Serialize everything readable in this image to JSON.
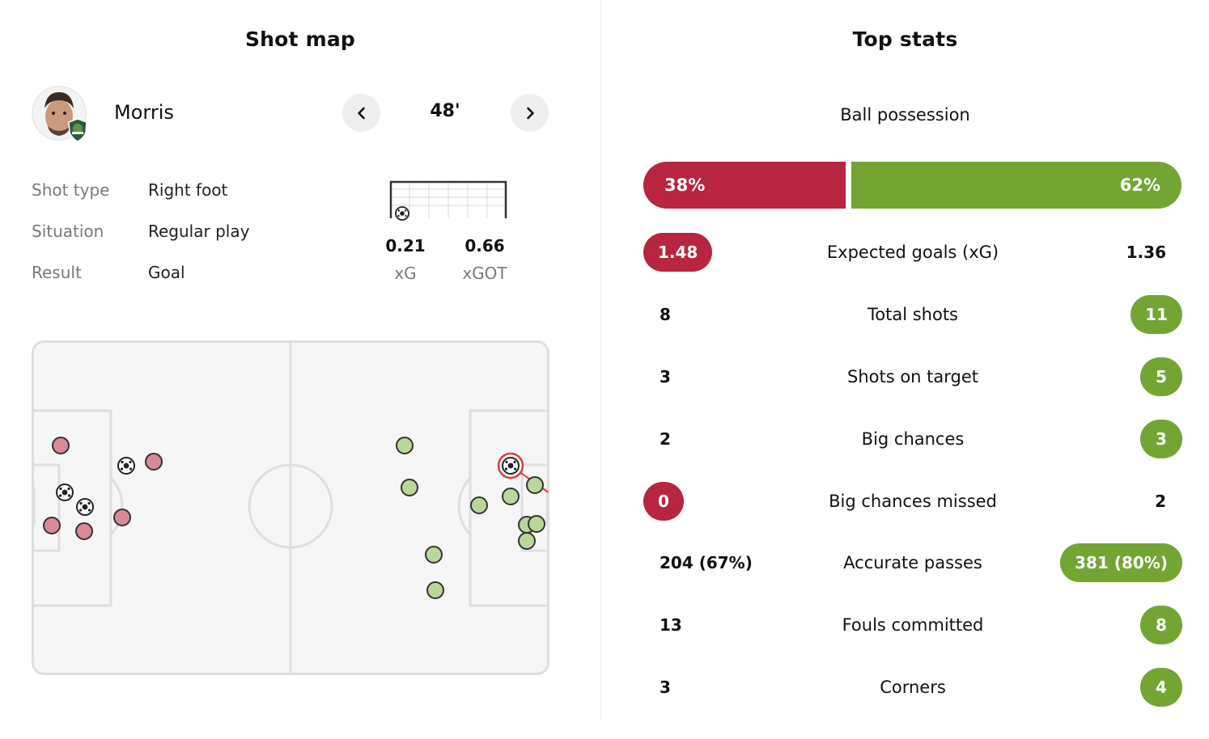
{
  "shot_map": {
    "title": "Shot map",
    "player_name": "Morris",
    "minute": "48'",
    "details": [
      {
        "label": "Shot type",
        "value": "Right foot"
      },
      {
        "label": "Situation",
        "value": "Regular play"
      },
      {
        "label": "Result",
        "value": "Goal"
      }
    ],
    "xg": {
      "value": "0.21",
      "label": "xG"
    },
    "xgot": {
      "value": "0.66",
      "label": "xGOT"
    },
    "colors": {
      "home": "#d98a96",
      "away": "#b9d79a",
      "selected": "#e03a3a"
    }
  },
  "top_stats": {
    "title": "Top stats",
    "possession": {
      "label": "Ball possession",
      "home": "38%",
      "away": "62%",
      "home_fraction": 0.38
    },
    "rows": [
      {
        "label": "Expected goals (xG)",
        "home": "1.48",
        "away": "1.36",
        "leader": "home"
      },
      {
        "label": "Total shots",
        "home": "8",
        "away": "11",
        "leader": "away"
      },
      {
        "label": "Shots on target",
        "home": "3",
        "away": "5",
        "leader": "away"
      },
      {
        "label": "Big chances",
        "home": "2",
        "away": "3",
        "leader": "away"
      },
      {
        "label": "Big chances missed",
        "home": "0",
        "away": "2",
        "leader": "home"
      },
      {
        "label": "Accurate passes",
        "home": "204 (67%)",
        "away": "381 (80%)",
        "leader": "away"
      },
      {
        "label": "Fouls committed",
        "home": "13",
        "away": "8",
        "leader": "away"
      },
      {
        "label": "Corners",
        "home": "3",
        "away": "4",
        "leader": "away"
      }
    ],
    "colors": {
      "home": "#b7253f",
      "away": "#73a533"
    }
  }
}
